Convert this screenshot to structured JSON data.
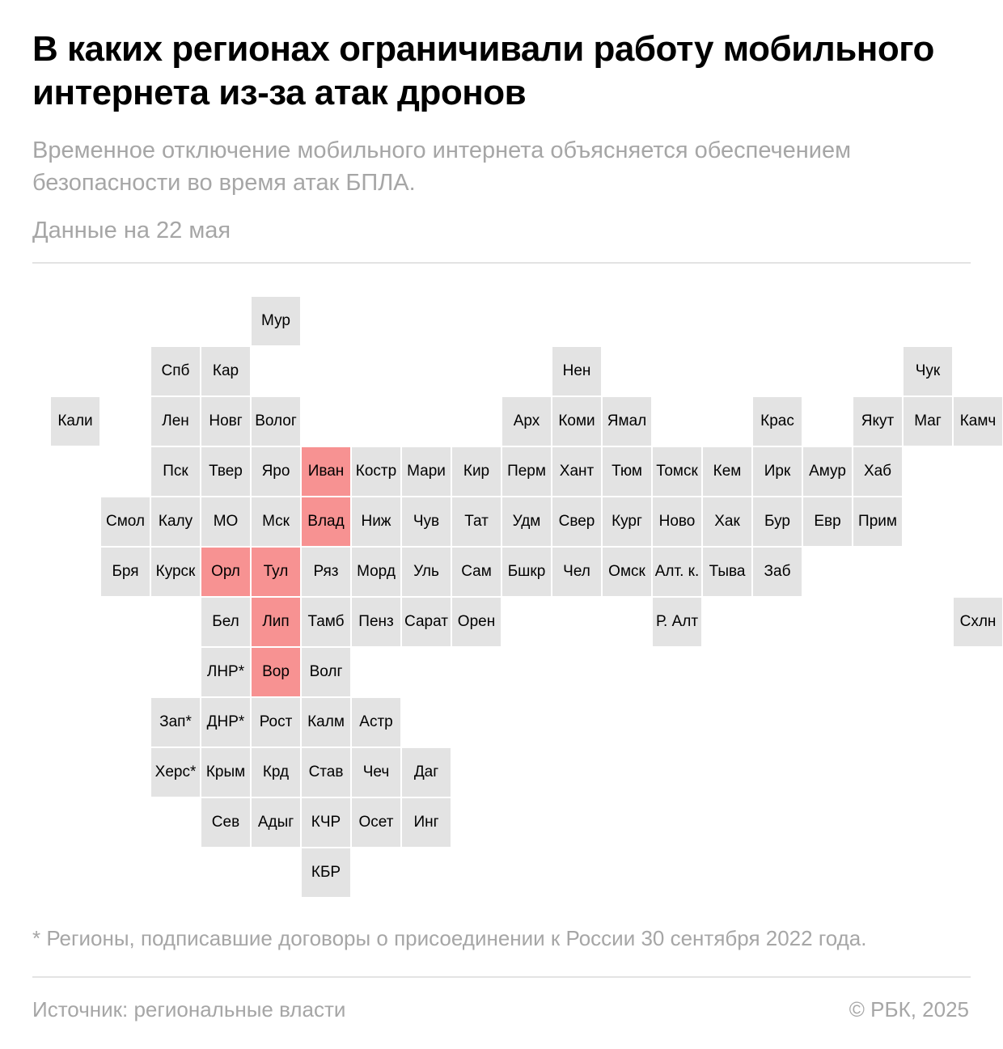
{
  "header": {
    "title": "В каких регионах ограничивали работу мобильного интернета из-за атак дронов",
    "subtitle": "Временное отключение мобильного интернета объясняется обеспечением безопасности во время атак БПЛА.",
    "date": "Данные на 22 мая"
  },
  "colors": {
    "restricted": "#f79292",
    "default": "#e3e3e3"
  },
  "map": {
    "regions": [
      {
        "label": "Мур",
        "row": 0,
        "col": 4,
        "restricted": false
      },
      {
        "label": "Спб",
        "row": 1,
        "col": 2,
        "restricted": false
      },
      {
        "label": "Кар",
        "row": 1,
        "col": 3,
        "restricted": false
      },
      {
        "label": "Нен",
        "row": 1,
        "col": 10,
        "restricted": false
      },
      {
        "label": "Чук",
        "row": 1,
        "col": 17,
        "restricted": false
      },
      {
        "label": "Кали",
        "row": 2,
        "col": 0,
        "restricted": false
      },
      {
        "label": "Лен",
        "row": 2,
        "col": 2,
        "restricted": false
      },
      {
        "label": "Новг",
        "row": 2,
        "col": 3,
        "restricted": false
      },
      {
        "label": "Волог",
        "row": 2,
        "col": 4,
        "restricted": false
      },
      {
        "label": "Арх",
        "row": 2,
        "col": 9,
        "restricted": false
      },
      {
        "label": "Коми",
        "row": 2,
        "col": 10,
        "restricted": false
      },
      {
        "label": "Ямал",
        "row": 2,
        "col": 11,
        "restricted": false
      },
      {
        "label": "Крас",
        "row": 2,
        "col": 14,
        "restricted": false
      },
      {
        "label": "Якут",
        "row": 2,
        "col": 16,
        "restricted": false
      },
      {
        "label": "Маг",
        "row": 2,
        "col": 17,
        "restricted": false
      },
      {
        "label": "Камч",
        "row": 2,
        "col": 18,
        "restricted": false
      },
      {
        "label": "Пск",
        "row": 3,
        "col": 2,
        "restricted": false
      },
      {
        "label": "Твер",
        "row": 3,
        "col": 3,
        "restricted": false
      },
      {
        "label": "Яро",
        "row": 3,
        "col": 4,
        "restricted": false
      },
      {
        "label": "Иван",
        "row": 3,
        "col": 5,
        "restricted": true
      },
      {
        "label": "Костр",
        "row": 3,
        "col": 6,
        "restricted": false
      },
      {
        "label": "Мари",
        "row": 3,
        "col": 7,
        "restricted": false
      },
      {
        "label": "Кир",
        "row": 3,
        "col": 8,
        "restricted": false
      },
      {
        "label": "Перм",
        "row": 3,
        "col": 9,
        "restricted": false
      },
      {
        "label": "Хант",
        "row": 3,
        "col": 10,
        "restricted": false
      },
      {
        "label": "Тюм",
        "row": 3,
        "col": 11,
        "restricted": false
      },
      {
        "label": "Томск",
        "row": 3,
        "col": 12,
        "restricted": false
      },
      {
        "label": "Кем",
        "row": 3,
        "col": 13,
        "restricted": false
      },
      {
        "label": "Ирк",
        "row": 3,
        "col": 14,
        "restricted": false
      },
      {
        "label": "Амур",
        "row": 3,
        "col": 15,
        "restricted": false
      },
      {
        "label": "Хаб",
        "row": 3,
        "col": 16,
        "restricted": false
      },
      {
        "label": "Смол",
        "row": 4,
        "col": 1,
        "restricted": false
      },
      {
        "label": "Калу",
        "row": 4,
        "col": 2,
        "restricted": false
      },
      {
        "label": "МО",
        "row": 4,
        "col": 3,
        "restricted": false
      },
      {
        "label": "Мск",
        "row": 4,
        "col": 4,
        "restricted": false
      },
      {
        "label": "Влад",
        "row": 4,
        "col": 5,
        "restricted": true
      },
      {
        "label": "Ниж",
        "row": 4,
        "col": 6,
        "restricted": false
      },
      {
        "label": "Чув",
        "row": 4,
        "col": 7,
        "restricted": false
      },
      {
        "label": "Тат",
        "row": 4,
        "col": 8,
        "restricted": false
      },
      {
        "label": "Удм",
        "row": 4,
        "col": 9,
        "restricted": false
      },
      {
        "label": "Свер",
        "row": 4,
        "col": 10,
        "restricted": false
      },
      {
        "label": "Кург",
        "row": 4,
        "col": 11,
        "restricted": false
      },
      {
        "label": "Ново",
        "row": 4,
        "col": 12,
        "restricted": false
      },
      {
        "label": "Хак",
        "row": 4,
        "col": 13,
        "restricted": false
      },
      {
        "label": "Бур",
        "row": 4,
        "col": 14,
        "restricted": false
      },
      {
        "label": "Евр",
        "row": 4,
        "col": 15,
        "restricted": false
      },
      {
        "label": "Прим",
        "row": 4,
        "col": 16,
        "restricted": false
      },
      {
        "label": "Бря",
        "row": 5,
        "col": 1,
        "restricted": false
      },
      {
        "label": "Курск",
        "row": 5,
        "col": 2,
        "restricted": false
      },
      {
        "label": "Орл",
        "row": 5,
        "col": 3,
        "restricted": true
      },
      {
        "label": "Тул",
        "row": 5,
        "col": 4,
        "restricted": true
      },
      {
        "label": "Ряз",
        "row": 5,
        "col": 5,
        "restricted": false
      },
      {
        "label": "Морд",
        "row": 5,
        "col": 6,
        "restricted": false
      },
      {
        "label": "Уль",
        "row": 5,
        "col": 7,
        "restricted": false
      },
      {
        "label": "Сам",
        "row": 5,
        "col": 8,
        "restricted": false
      },
      {
        "label": "Бшкр",
        "row": 5,
        "col": 9,
        "restricted": false
      },
      {
        "label": "Чел",
        "row": 5,
        "col": 10,
        "restricted": false
      },
      {
        "label": "Омск",
        "row": 5,
        "col": 11,
        "restricted": false
      },
      {
        "label": "Алт. к.",
        "row": 5,
        "col": 12,
        "restricted": false
      },
      {
        "label": "Тыва",
        "row": 5,
        "col": 13,
        "restricted": false
      },
      {
        "label": "Заб",
        "row": 5,
        "col": 14,
        "restricted": false
      },
      {
        "label": "Бел",
        "row": 6,
        "col": 3,
        "restricted": false
      },
      {
        "label": "Лип",
        "row": 6,
        "col": 4,
        "restricted": true
      },
      {
        "label": "Тамб",
        "row": 6,
        "col": 5,
        "restricted": false
      },
      {
        "label": "Пенз",
        "row": 6,
        "col": 6,
        "restricted": false
      },
      {
        "label": "Сарат",
        "row": 6,
        "col": 7,
        "restricted": false
      },
      {
        "label": "Орен",
        "row": 6,
        "col": 8,
        "restricted": false
      },
      {
        "label": "Р. Алт",
        "row": 6,
        "col": 12,
        "restricted": false
      },
      {
        "label": "Схлн",
        "row": 6,
        "col": 18,
        "restricted": false
      },
      {
        "label": "ЛНР*",
        "row": 7,
        "col": 3,
        "restricted": false
      },
      {
        "label": "Вор",
        "row": 7,
        "col": 4,
        "restricted": true
      },
      {
        "label": "Волг",
        "row": 7,
        "col": 5,
        "restricted": false
      },
      {
        "label": "Зап*",
        "row": 8,
        "col": 2,
        "restricted": false
      },
      {
        "label": "ДНР*",
        "row": 8,
        "col": 3,
        "restricted": false
      },
      {
        "label": "Рост",
        "row": 8,
        "col": 4,
        "restricted": false
      },
      {
        "label": "Калм",
        "row": 8,
        "col": 5,
        "restricted": false
      },
      {
        "label": "Астр",
        "row": 8,
        "col": 6,
        "restricted": false
      },
      {
        "label": "Херс*",
        "row": 9,
        "col": 2,
        "restricted": false
      },
      {
        "label": "Крым",
        "row": 9,
        "col": 3,
        "restricted": false
      },
      {
        "label": "Крд",
        "row": 9,
        "col": 4,
        "restricted": false
      },
      {
        "label": "Став",
        "row": 9,
        "col": 5,
        "restricted": false
      },
      {
        "label": "Чеч",
        "row": 9,
        "col": 6,
        "restricted": false
      },
      {
        "label": "Даг",
        "row": 9,
        "col": 7,
        "restricted": false
      },
      {
        "label": "Сев",
        "row": 10,
        "col": 3,
        "restricted": false
      },
      {
        "label": "Адыг",
        "row": 10,
        "col": 4,
        "restricted": false
      },
      {
        "label": "КЧР",
        "row": 10,
        "col": 5,
        "restricted": false
      },
      {
        "label": "Осет",
        "row": 10,
        "col": 6,
        "restricted": false
      },
      {
        "label": "Инг",
        "row": 10,
        "col": 7,
        "restricted": false
      },
      {
        "label": "КБР",
        "row": 11,
        "col": 5,
        "restricted": false
      }
    ]
  },
  "footnote": "* Регионы, подписавшие договоры о присоединении к России 30 сентября 2022 года.",
  "footer": {
    "source": "Источник: региональные власти",
    "copyright": "© РБК, 2025"
  }
}
